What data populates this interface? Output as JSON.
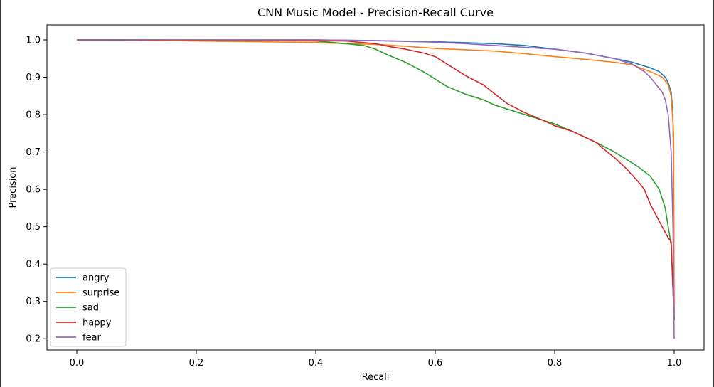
{
  "chart_data": {
    "type": "line",
    "title": "CNN Music Model - Precision-Recall Curve",
    "xlabel": "Recall",
    "ylabel": "Precision",
    "xlim": [
      -0.05,
      1.05
    ],
    "ylim": [
      0.17,
      1.04
    ],
    "xticks": [
      "0.0",
      "0.2",
      "0.4",
      "0.6",
      "0.8",
      "1.0"
    ],
    "xtick_values": [
      0.0,
      0.2,
      0.4,
      0.6,
      0.8,
      1.0
    ],
    "yticks": [
      "0.2",
      "0.3",
      "0.4",
      "0.5",
      "0.6",
      "0.7",
      "0.8",
      "0.9",
      "1.0"
    ],
    "ytick_values": [
      0.2,
      0.3,
      0.4,
      0.5,
      0.6,
      0.7,
      0.8,
      0.9,
      1.0
    ],
    "grid": false,
    "legend_position": "lower-left",
    "series": [
      {
        "name": "angry",
        "color": "#1f77b4",
        "points": [
          [
            0,
            1.0
          ],
          [
            0.2,
            1.0
          ],
          [
            0.4,
            1.0
          ],
          [
            0.5,
            0.998
          ],
          [
            0.6,
            0.995
          ],
          [
            0.7,
            0.99
          ],
          [
            0.75,
            0.985
          ],
          [
            0.8,
            0.975
          ],
          [
            0.85,
            0.965
          ],
          [
            0.9,
            0.95
          ],
          [
            0.93,
            0.94
          ],
          [
            0.96,
            0.925
          ],
          [
            0.975,
            0.915
          ],
          [
            0.985,
            0.9
          ],
          [
            0.99,
            0.885
          ],
          [
            0.995,
            0.86
          ],
          [
            0.998,
            0.8
          ],
          [
            0.999,
            0.6
          ],
          [
            1.0,
            0.25
          ]
        ]
      },
      {
        "name": "surprise",
        "color": "#ff7f0e",
        "points": [
          [
            0,
            1.0
          ],
          [
            0.1,
            0.999
          ],
          [
            0.2,
            0.997
          ],
          [
            0.3,
            0.995
          ],
          [
            0.4,
            0.993
          ],
          [
            0.45,
            0.99
          ],
          [
            0.5,
            0.988
          ],
          [
            0.55,
            0.983
          ],
          [
            0.6,
            0.977
          ],
          [
            0.7,
            0.97
          ],
          [
            0.75,
            0.963
          ],
          [
            0.8,
            0.955
          ],
          [
            0.85,
            0.948
          ],
          [
            0.9,
            0.94
          ],
          [
            0.93,
            0.933
          ],
          [
            0.96,
            0.915
          ],
          [
            0.98,
            0.9
          ],
          [
            0.99,
            0.88
          ],
          [
            0.995,
            0.85
          ],
          [
            0.999,
            0.75
          ],
          [
            1.0,
            0.25
          ]
        ]
      },
      {
        "name": "sad",
        "color": "#2ca02c",
        "points": [
          [
            0,
            1.0
          ],
          [
            0.3,
            0.999
          ],
          [
            0.4,
            0.997
          ],
          [
            0.45,
            0.99
          ],
          [
            0.48,
            0.985
          ],
          [
            0.5,
            0.975
          ],
          [
            0.52,
            0.96
          ],
          [
            0.55,
            0.94
          ],
          [
            0.58,
            0.915
          ],
          [
            0.6,
            0.895
          ],
          [
            0.62,
            0.875
          ],
          [
            0.65,
            0.855
          ],
          [
            0.68,
            0.84
          ],
          [
            0.7,
            0.825
          ],
          [
            0.73,
            0.81
          ],
          [
            0.76,
            0.795
          ],
          [
            0.8,
            0.775
          ],
          [
            0.83,
            0.755
          ],
          [
            0.85,
            0.74
          ],
          [
            0.87,
            0.725
          ],
          [
            0.9,
            0.7
          ],
          [
            0.92,
            0.68
          ],
          [
            0.94,
            0.66
          ],
          [
            0.96,
            0.635
          ],
          [
            0.975,
            0.6
          ],
          [
            0.985,
            0.55
          ],
          [
            0.99,
            0.5
          ],
          [
            0.995,
            0.45
          ],
          [
            1.0,
            0.25
          ]
        ]
      },
      {
        "name": "happy",
        "color": "#d62728",
        "points": [
          [
            0,
            1.0
          ],
          [
            0.3,
            0.999
          ],
          [
            0.45,
            0.997
          ],
          [
            0.5,
            0.99
          ],
          [
            0.52,
            0.983
          ],
          [
            0.55,
            0.975
          ],
          [
            0.58,
            0.965
          ],
          [
            0.6,
            0.955
          ],
          [
            0.62,
            0.935
          ],
          [
            0.65,
            0.905
          ],
          [
            0.68,
            0.88
          ],
          [
            0.7,
            0.855
          ],
          [
            0.72,
            0.83
          ],
          [
            0.75,
            0.805
          ],
          [
            0.78,
            0.785
          ],
          [
            0.8,
            0.77
          ],
          [
            0.83,
            0.755
          ],
          [
            0.85,
            0.74
          ],
          [
            0.87,
            0.725
          ],
          [
            0.88,
            0.71
          ],
          [
            0.9,
            0.685
          ],
          [
            0.92,
            0.655
          ],
          [
            0.94,
            0.62
          ],
          [
            0.95,
            0.6
          ],
          [
            0.96,
            0.56
          ],
          [
            0.97,
            0.53
          ],
          [
            0.98,
            0.5
          ],
          [
            0.99,
            0.47
          ],
          [
            0.995,
            0.46
          ],
          [
            1.0,
            0.25
          ]
        ]
      },
      {
        "name": "fear",
        "color": "#9467bd",
        "points": [
          [
            0,
            1.0
          ],
          [
            0.2,
            1.0
          ],
          [
            0.4,
            1.0
          ],
          [
            0.5,
            0.998
          ],
          [
            0.6,
            0.994
          ],
          [
            0.65,
            0.99
          ],
          [
            0.7,
            0.985
          ],
          [
            0.75,
            0.98
          ],
          [
            0.8,
            0.975
          ],
          [
            0.85,
            0.965
          ],
          [
            0.9,
            0.95
          ],
          [
            0.93,
            0.935
          ],
          [
            0.95,
            0.915
          ],
          [
            0.96,
            0.9
          ],
          [
            0.97,
            0.88
          ],
          [
            0.98,
            0.86
          ],
          [
            0.985,
            0.84
          ],
          [
            0.99,
            0.8
          ],
          [
            0.995,
            0.7
          ],
          [
            0.998,
            0.5
          ],
          [
            1.0,
            0.2
          ]
        ]
      }
    ]
  }
}
